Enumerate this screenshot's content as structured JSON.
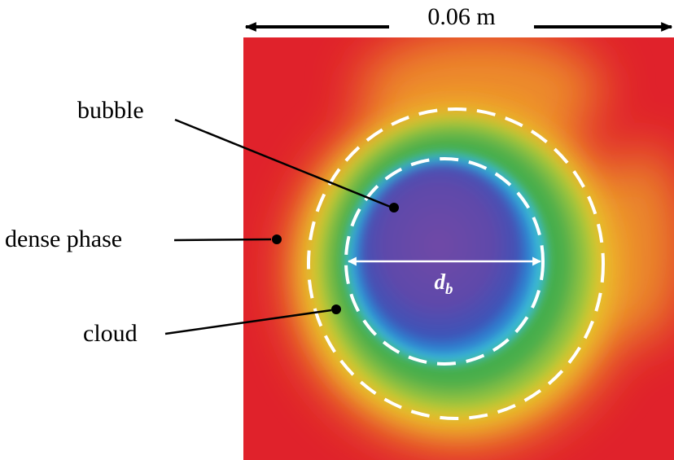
{
  "scale_bar": {
    "label": "0.06 m"
  },
  "labels": {
    "bubble": "bubble",
    "dense_phase": "dense phase",
    "cloud": "cloud"
  },
  "diameter": {
    "symbol": "d",
    "subscript": "b"
  },
  "colors": {
    "dense_phase": "#e0222b",
    "transition": "#e8d02a",
    "cloud": "#45ae4a",
    "cloud_edge": "#35bee6",
    "bubble_core": "#6a4aa6",
    "outline": "#ffffff"
  }
}
